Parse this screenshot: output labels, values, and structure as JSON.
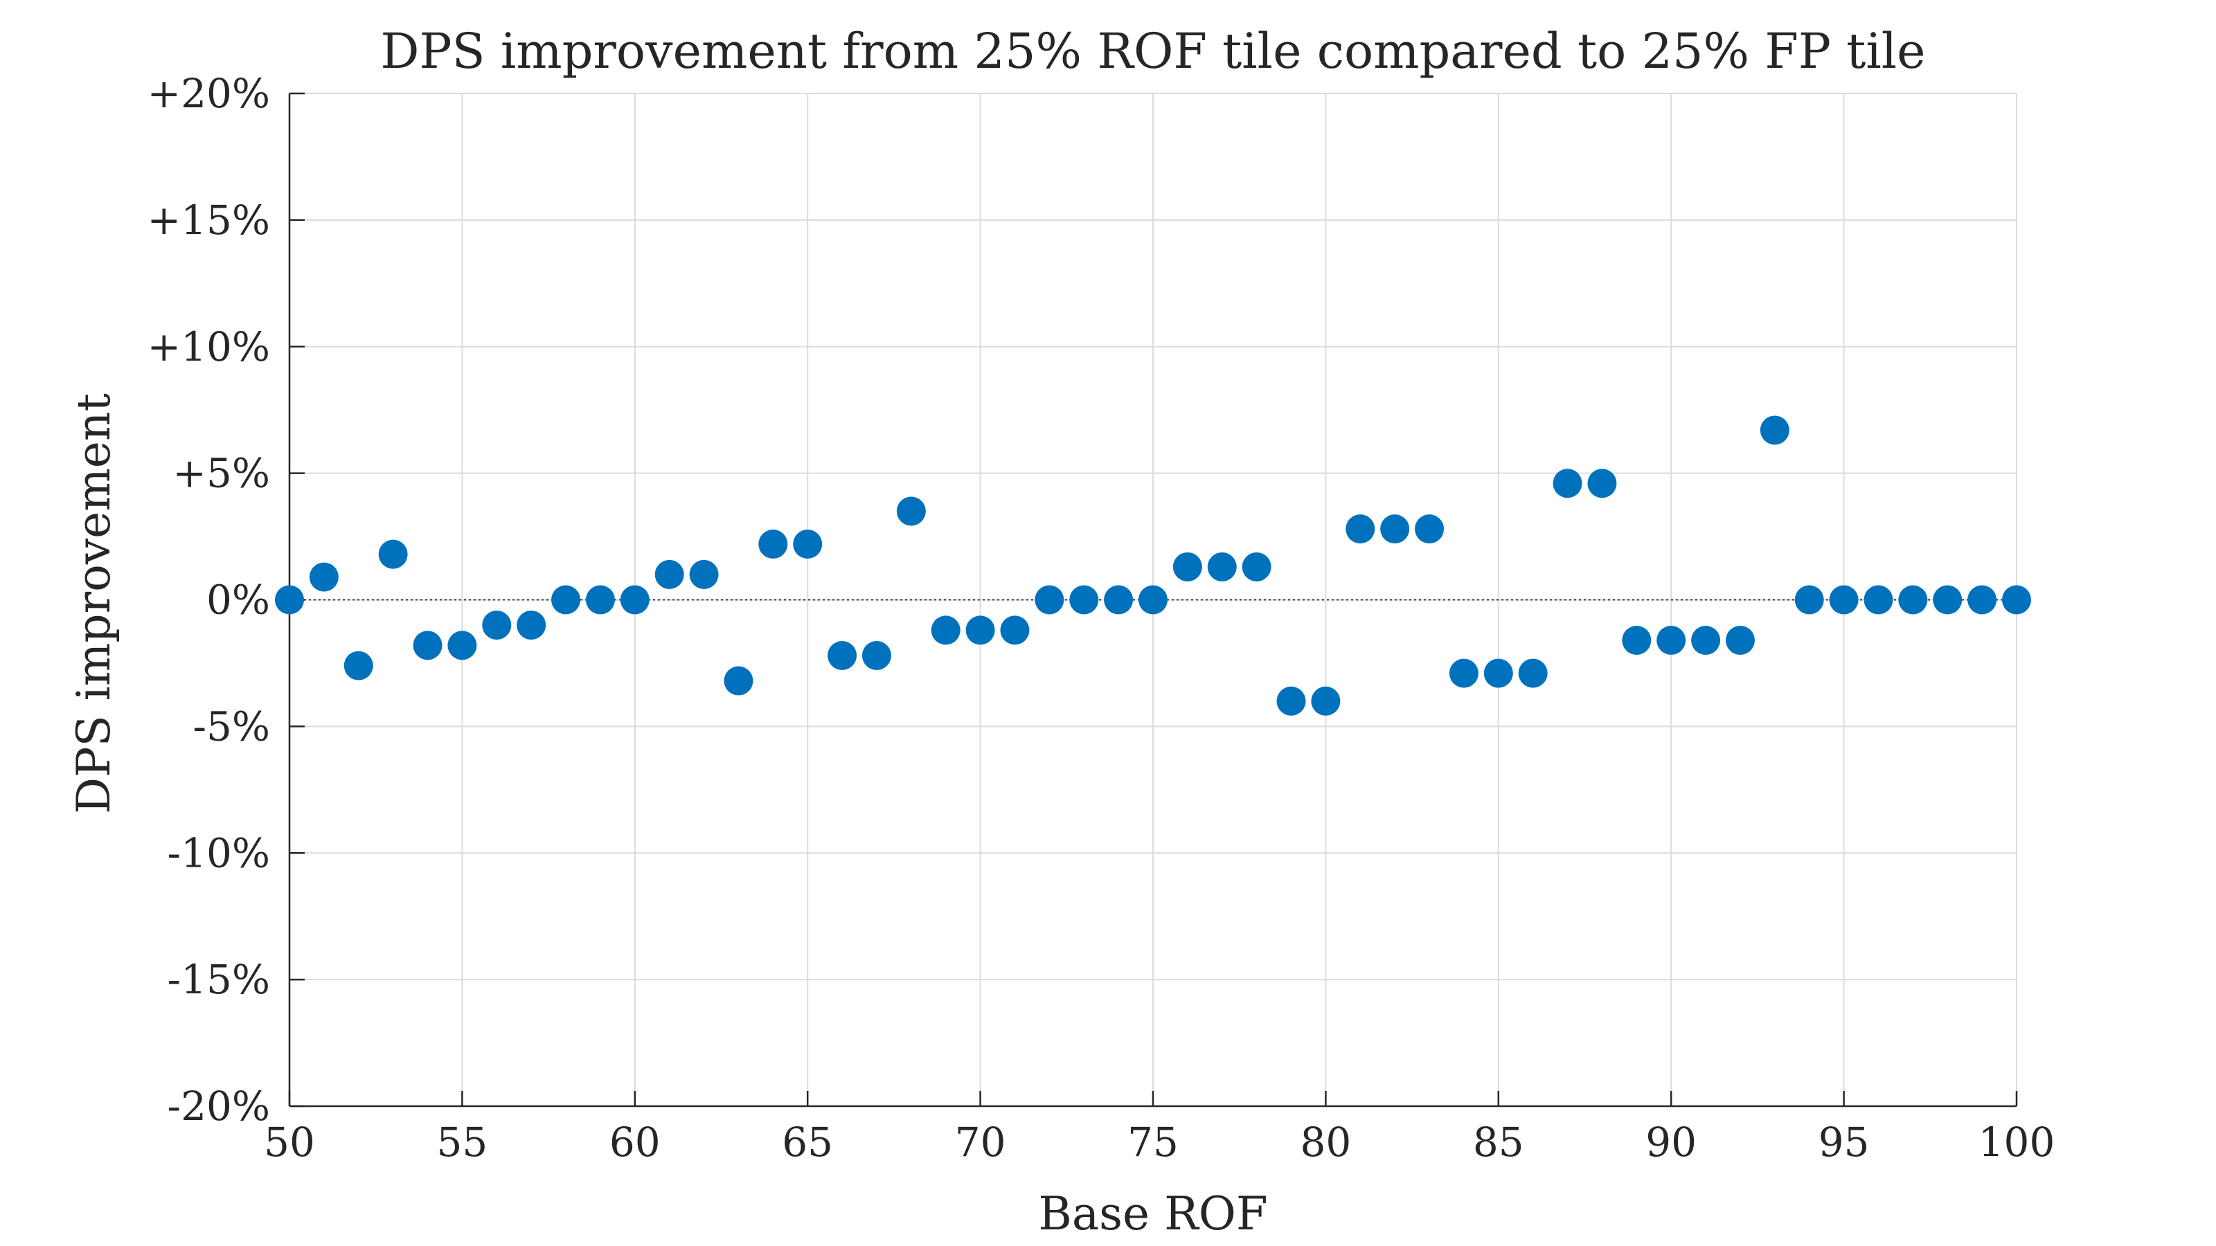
{
  "chart_data": {
    "type": "scatter",
    "title": "DPS improvement from 25% ROF tile compared to 25% FP tile",
    "xlabel": "Base ROF",
    "ylabel": "DPS improvement",
    "xlim": [
      50,
      100
    ],
    "ylim": [
      -20,
      20
    ],
    "x_ticks": [
      50,
      55,
      60,
      65,
      70,
      75,
      80,
      85,
      90,
      95,
      100
    ],
    "x_tick_labels": [
      "50",
      "55",
      "60",
      "65",
      "70",
      "75",
      "80",
      "85",
      "90",
      "95",
      "100"
    ],
    "y_ticks": [
      20,
      15,
      10,
      5,
      0,
      -5,
      -10,
      -15,
      -20
    ],
    "y_tick_labels": [
      "+20%",
      "+15%",
      "+10%",
      "+5%",
      "0%",
      "-5%",
      "-10%",
      "-15%",
      "-20%"
    ],
    "grid": true,
    "reference_line_y": 0,
    "marker_color": "#0072BD",
    "series": [
      {
        "x": [
          50,
          51,
          52,
          53,
          54,
          55,
          56,
          57,
          58,
          59,
          60,
          61,
          62,
          63,
          64,
          65,
          66,
          67,
          68,
          69,
          70,
          71,
          72,
          73,
          74,
          75,
          76,
          77,
          78,
          79,
          80,
          81,
          82,
          83,
          84,
          85,
          86,
          87,
          88,
          89,
          90,
          91,
          92,
          93,
          94,
          95,
          96,
          97,
          98,
          99,
          100
        ],
        "y": [
          0.0,
          0.9,
          -2.6,
          1.8,
          -1.8,
          -1.8,
          -1.0,
          -1.0,
          0.0,
          0.0,
          0.0,
          1.0,
          1.0,
          -3.2,
          2.2,
          2.2,
          -2.2,
          -2.2,
          3.5,
          -1.2,
          -1.2,
          -1.2,
          0.0,
          0.0,
          0.0,
          0.0,
          1.3,
          1.3,
          1.3,
          -4.0,
          -4.0,
          2.8,
          2.8,
          2.8,
          -2.9,
          -2.9,
          -2.9,
          4.6,
          4.6,
          -1.6,
          -1.6,
          -1.6,
          -1.6,
          6.7,
          0.0,
          0.0,
          0.0,
          0.0,
          0.0,
          0.0,
          0.0
        ]
      }
    ]
  }
}
